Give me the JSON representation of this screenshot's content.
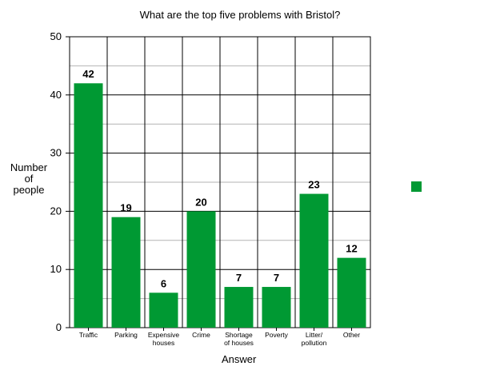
{
  "chart_data": {
    "type": "bar",
    "title": "What are the top five problems with Bristol?",
    "xlabel": "Answer",
    "ylabel": [
      "Number",
      "of",
      "people"
    ],
    "categories": [
      [
        "Traffic"
      ],
      [
        "Parking"
      ],
      [
        "Expensive",
        "houses"
      ],
      [
        "Crime"
      ],
      [
        "Shortage",
        "of houses"
      ],
      [
        "Poverty"
      ],
      [
        "Litter/",
        "pollution"
      ],
      [
        "Other"
      ]
    ],
    "values": [
      42,
      19,
      6,
      20,
      7,
      7,
      23,
      12
    ],
    "ylim": [
      0,
      50
    ],
    "yticks": [
      0,
      10,
      20,
      30,
      40,
      50
    ],
    "grid": true,
    "bar_color": "#009933",
    "legend": {
      "placement": "right",
      "entries": [
        {
          "label": "",
          "color": "#009933"
        }
      ]
    }
  }
}
